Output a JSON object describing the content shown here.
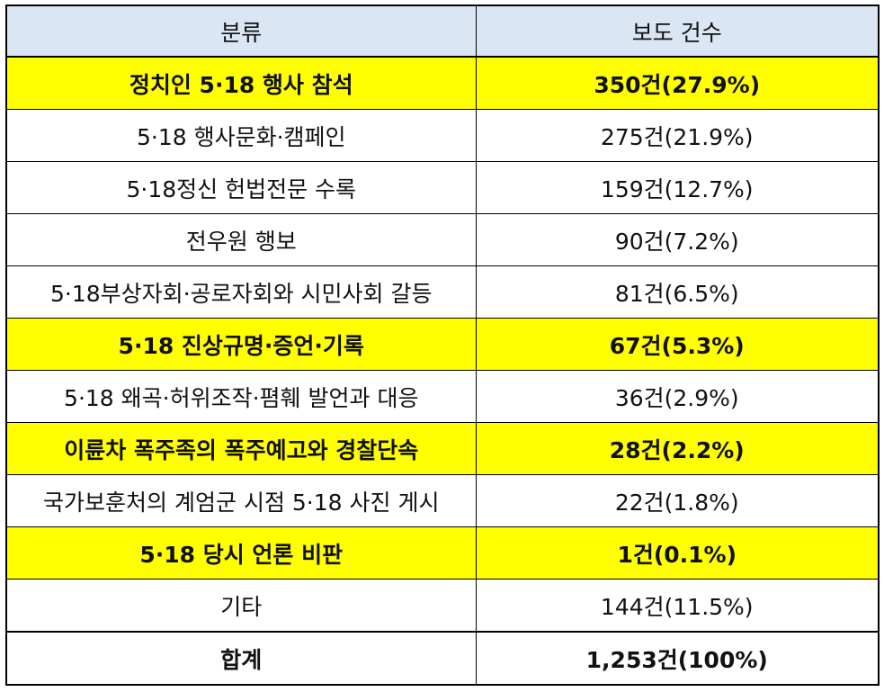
{
  "table": {
    "headers": [
      "분류",
      "보도 건수"
    ],
    "rows": [
      {
        "category": "정치인 5·18 행사 참석",
        "count": "350건(27.9%)",
        "highlight": true
      },
      {
        "category": "5·18 행사문화·캠페인",
        "count": "275건(21.9%)",
        "highlight": false
      },
      {
        "category": "5·18정신 헌법전문 수록",
        "count": "159건(12.7%)",
        "highlight": false
      },
      {
        "category": "전우원 행보",
        "count": "90건(7.2%)",
        "highlight": false
      },
      {
        "category": "5·18부상자회·공로자회와 시민사회 갈등",
        "count": "81건(6.5%)",
        "highlight": false
      },
      {
        "category": "5·18 진상규명·증언·기록",
        "count": "67건(5.3%)",
        "highlight": true
      },
      {
        "category": "5·18 왜곡·허위조작·폄훼 발언과 대응",
        "count": "36건(2.9%)",
        "highlight": false
      },
      {
        "category": "이륜차 폭주족의 폭주예고와 경찰단속",
        "count": "28건(2.2%)",
        "highlight": true
      },
      {
        "category": "국가보훈처의 계엄군 시점 5·18 사진 게시",
        "count": "22건(1.8%)",
        "highlight": false
      },
      {
        "category": "5·18 당시 언론 비판",
        "count": "1건(0.1%)",
        "highlight": true
      },
      {
        "category": "기타",
        "count": "144건(11.5%)",
        "highlight": false
      }
    ],
    "total": {
      "category": "합계",
      "count": "1,253건(100%)"
    }
  },
  "colors": {
    "header_bg": "#dae6f3",
    "highlight_bg": "#ffff00",
    "border": "#000000"
  }
}
